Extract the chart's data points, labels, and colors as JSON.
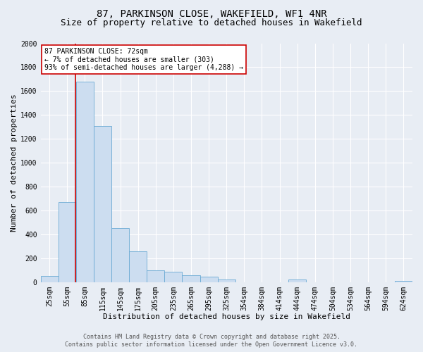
{
  "title_line1": "87, PARKINSON CLOSE, WAKEFIELD, WF1 4NR",
  "title_line2": "Size of property relative to detached houses in Wakefield",
  "xlabel": "Distribution of detached houses by size in Wakefield",
  "ylabel": "Number of detached properties",
  "bar_color": "#ccddf0",
  "bar_edge_color": "#6aaad4",
  "background_color": "#e8edf4",
  "grid_color": "#ffffff",
  "categories": [
    "25sqm",
    "55sqm",
    "85sqm",
    "115sqm",
    "145sqm",
    "175sqm",
    "205sqm",
    "235sqm",
    "265sqm",
    "295sqm",
    "325sqm",
    "354sqm",
    "384sqm",
    "414sqm",
    "444sqm",
    "474sqm",
    "504sqm",
    "534sqm",
    "564sqm",
    "594sqm",
    "624sqm"
  ],
  "values": [
    50,
    670,
    1680,
    1310,
    450,
    255,
    100,
    85,
    55,
    45,
    20,
    0,
    0,
    0,
    20,
    0,
    0,
    0,
    0,
    0,
    10
  ],
  "ylim": [
    0,
    2000
  ],
  "yticks": [
    0,
    200,
    400,
    600,
    800,
    1000,
    1200,
    1400,
    1600,
    1800,
    2000
  ],
  "red_line_x": 1.47,
  "annotation_text": "87 PARKINSON CLOSE: 72sqm\n← 7% of detached houses are smaller (303)\n93% of semi-detached houses are larger (4,288) →",
  "annotation_box_facecolor": "#ffffff",
  "annotation_box_edgecolor": "#cc0000",
  "red_line_color": "#cc0000",
  "footer_text": "Contains HM Land Registry data © Crown copyright and database right 2025.\nContains public sector information licensed under the Open Government Licence v3.0.",
  "title1_fontsize": 10,
  "title2_fontsize": 9,
  "axis_label_fontsize": 8,
  "tick_fontsize": 7,
  "annotation_fontsize": 7,
  "footer_fontsize": 6
}
